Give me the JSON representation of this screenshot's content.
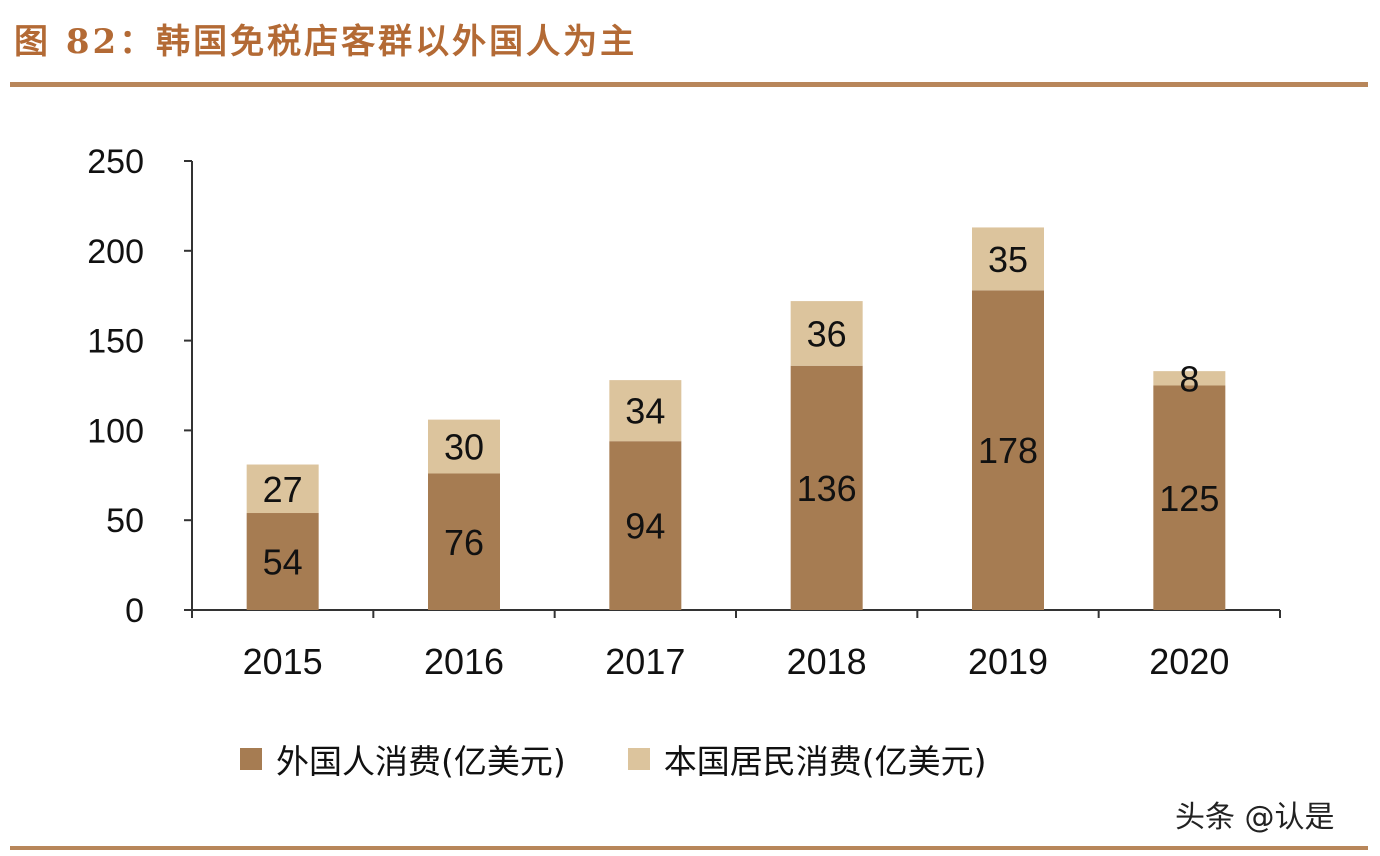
{
  "header": {
    "title": "图 82：韩国免税店客群以外国人为主"
  },
  "colors": {
    "foreign": "#a67c52",
    "domestic": "#dcc49d",
    "rule": "#b8865a",
    "title": "#b36a35"
  },
  "chart_data": {
    "type": "bar",
    "stacked": true,
    "categories": [
      "2015",
      "2016",
      "2017",
      "2018",
      "2019",
      "2020"
    ],
    "series": [
      {
        "name": "外国人消费(亿美元)",
        "values": [
          54,
          76,
          94,
          136,
          178,
          125
        ]
      },
      {
        "name": "本国居民消费(亿美元)",
        "values": [
          27,
          30,
          34,
          36,
          35,
          8
        ]
      }
    ],
    "ylim": [
      0,
      250
    ],
    "yticks": [
      "0",
      "50",
      "100",
      "150",
      "200",
      "250"
    ],
    "grid": false,
    "legend_position": "bottom"
  },
  "watermark": "头条 @认是"
}
